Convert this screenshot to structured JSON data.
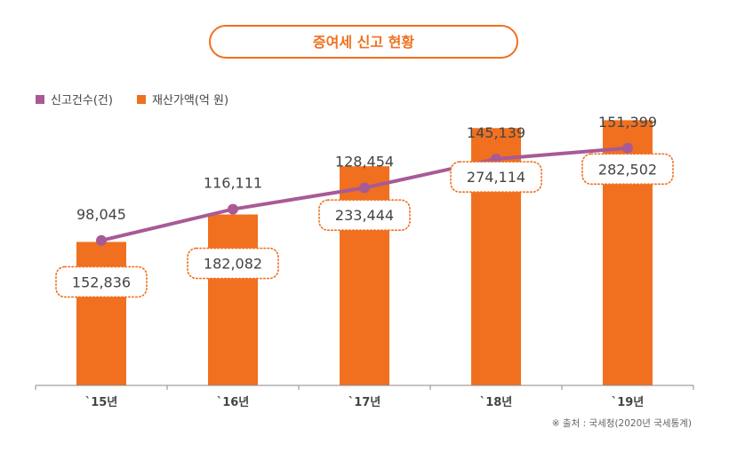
{
  "chart_data": {
    "type": "bar",
    "title": "증여세 신고 현황",
    "categories": [
      "`15년",
      "`16년",
      "`17년",
      "`18년",
      "`19년"
    ],
    "series": [
      {
        "name": "신고건수(건)",
        "chart_type": "line",
        "values": [
          98045,
          116111,
          128454,
          145139,
          151399
        ],
        "labels": [
          "98,045",
          "116,111",
          "128,454",
          "145,139",
          "151,399"
        ],
        "ylim": [
          60000,
          160000
        ]
      },
      {
        "name": "재산가액(억 원)",
        "chart_type": "bar",
        "values": [
          152836,
          182082,
          233444,
          274114,
          282502
        ],
        "labels": [
          "152,836",
          "182,082",
          "233,444",
          "274,114",
          "282,502"
        ],
        "ylim": [
          0,
          350000
        ]
      }
    ],
    "legend_position": "top-left",
    "source": "※ 출처 : 국세청(2020년 국세통계)",
    "grid": false
  },
  "colors": {
    "bar": "#F07020",
    "line": "#A85A96",
    "title_border": "#F07020",
    "title_text": "#F07020",
    "text": "#444444",
    "axis": "#888888",
    "label_border": "#F07020",
    "source": "#666666"
  }
}
